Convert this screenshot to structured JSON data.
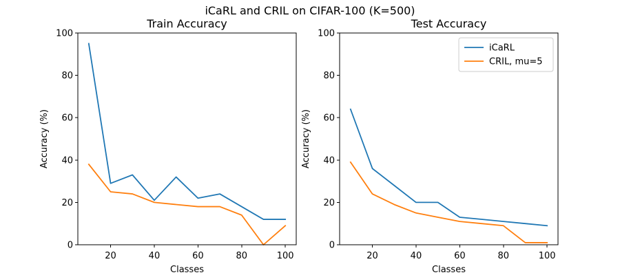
{
  "figure": {
    "suptitle": "iCaRL and CRIL on CIFAR-100 (K=500)"
  },
  "chart_data": [
    {
      "type": "line",
      "title": "Train Accuracy",
      "xlabel": "Classes",
      "ylabel": "Accuracy (%)",
      "xlim": [
        5,
        105
      ],
      "ylim": [
        0,
        100
      ],
      "xticks": [
        20,
        40,
        60,
        80,
        100
      ],
      "yticks": [
        0,
        20,
        40,
        60,
        80,
        100
      ],
      "grid": false,
      "legend": null,
      "series": [
        {
          "name": "iCaRL",
          "color": "#1f77b4",
          "x": [
            10,
            20,
            30,
            40,
            50,
            60,
            70,
            80,
            90,
            100
          ],
          "y": [
            95,
            29,
            33,
            21,
            32,
            22,
            24,
            18,
            12,
            12
          ]
        },
        {
          "name": "CRIL, mu=5",
          "color": "#ff7f0e",
          "x": [
            10,
            20,
            30,
            40,
            50,
            60,
            70,
            80,
            90,
            100
          ],
          "y": [
            38,
            25,
            24,
            20,
            19,
            18,
            18,
            14,
            0,
            9
          ]
        }
      ]
    },
    {
      "type": "line",
      "title": "Test Accuracy",
      "xlabel": "Classes",
      "ylabel": "Accuracy (%)",
      "xlim": [
        5,
        105
      ],
      "ylim": [
        0,
        100
      ],
      "xticks": [
        20,
        40,
        60,
        80,
        100
      ],
      "yticks": [
        0,
        20,
        40,
        60,
        80,
        100
      ],
      "grid": false,
      "legend": "top-right",
      "series": [
        {
          "name": "iCaRL",
          "color": "#1f77b4",
          "x": [
            10,
            20,
            30,
            40,
            50,
            60,
            70,
            80,
            90,
            100
          ],
          "y": [
            64,
            36,
            28,
            20,
            20,
            13,
            12,
            11,
            10,
            9
          ]
        },
        {
          "name": "CRIL, mu=5",
          "color": "#ff7f0e",
          "x": [
            10,
            20,
            30,
            40,
            50,
            60,
            70,
            80,
            90,
            100
          ],
          "y": [
            39,
            24,
            19,
            15,
            13,
            11,
            10,
            9,
            1,
            1
          ]
        }
      ]
    }
  ]
}
